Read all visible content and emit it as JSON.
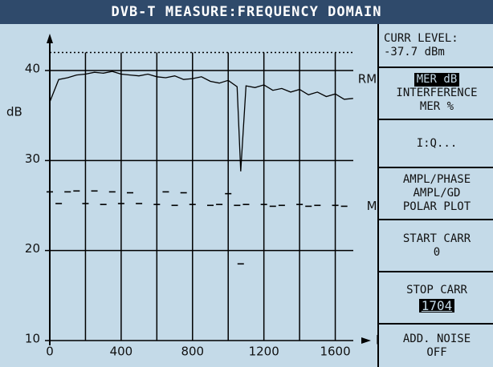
{
  "header": {
    "title": "DVB-T MEASURE:FREQUENCY DOMAIN"
  },
  "side": {
    "curr_label": "CURR LEVEL:",
    "curr_value": "-37.7 dBm",
    "menu": [
      [
        "MER dB",
        "INTERFERENCE",
        "MER %"
      ],
      [
        "I:Q..."
      ],
      [
        "AMPL/PHASE",
        "AMPL/GD",
        "POLAR PLOT"
      ],
      [
        "START CARR",
        "0"
      ],
      [
        "STOP CARR",
        "1704"
      ],
      [
        "ADD. NOISE",
        "OFF"
      ]
    ]
  },
  "chart_data": {
    "type": "line",
    "y_label": "dB",
    "x_label": "k",
    "xlim": [
      0,
      1800
    ],
    "xticks": [
      0,
      400,
      800,
      1200,
      1600
    ],
    "xminor": [
      200,
      600,
      1000,
      1400
    ],
    "ylim": [
      10,
      42
    ],
    "yticks": [
      10,
      20,
      30,
      40
    ],
    "grid": true,
    "x": [
      0,
      50,
      100,
      150,
      200,
      250,
      300,
      350,
      400,
      450,
      500,
      550,
      600,
      650,
      700,
      750,
      800,
      850,
      900,
      950,
      1000,
      1050,
      1070,
      1100,
      1150,
      1200,
      1250,
      1300,
      1350,
      1400,
      1450,
      1500,
      1550,
      1600,
      1650,
      1700
    ],
    "series": [
      {
        "name": "RMS",
        "color": "#000000",
        "style": "line",
        "values": [
          36.5,
          39,
          39.2,
          39.5,
          39.6,
          39.8,
          39.7,
          39.9,
          39.6,
          39.5,
          39.4,
          39.6,
          39.3,
          39.2,
          39.4,
          39.0,
          39.1,
          39.3,
          38.8,
          38.6,
          38.9,
          38.2,
          28.8,
          38.3,
          38.1,
          38.4,
          37.8,
          38.0,
          37.6,
          37.9,
          37.3,
          37.6,
          37.1,
          37.4,
          36.8,
          36.9
        ]
      },
      {
        "name": "MIN",
        "color": "#000000",
        "style": "dots",
        "values": [
          26.5,
          25.2,
          26.5,
          26.6,
          25.2,
          26.6,
          25.1,
          26.5,
          25.2,
          26.4,
          25.2,
          null,
          25.1,
          26.5,
          25.0,
          26.4,
          25.1,
          null,
          25.0,
          25.1,
          26.3,
          25.0,
          18.5,
          25.1,
          null,
          25.1,
          24.9,
          25.0,
          null,
          25.1,
          24.9,
          25.0,
          null,
          25.0,
          24.9,
          null
        ]
      }
    ]
  }
}
